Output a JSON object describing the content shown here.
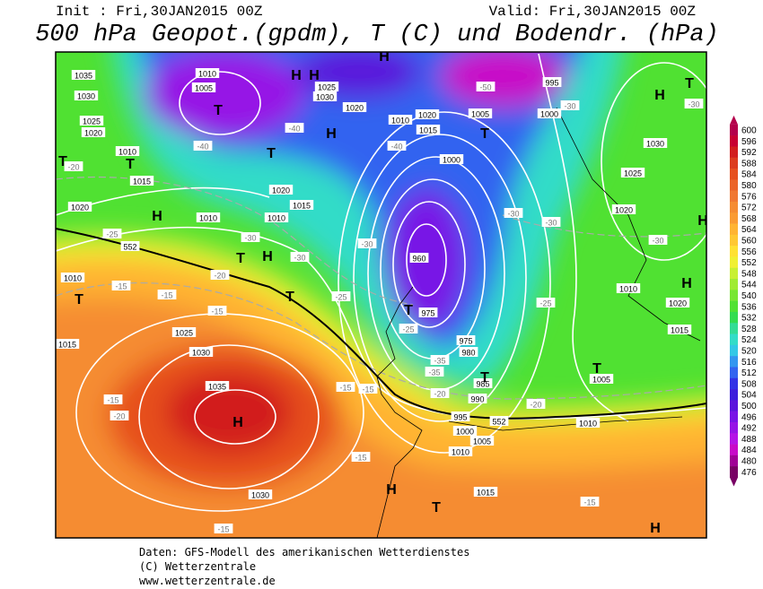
{
  "header": {
    "init": "Init : Fri,30JAN2015 00Z",
    "valid": "Valid: Fri,30JAN2015 00Z",
    "title": "500 hPa Geopot.(gpdm), T (C) und Bodendr. (hPa)"
  },
  "colorbar": {
    "levels": [
      600,
      596,
      592,
      588,
      584,
      580,
      576,
      572,
      568,
      564,
      560,
      556,
      552,
      548,
      544,
      540,
      536,
      532,
      528,
      524,
      520,
      516,
      512,
      508,
      504,
      500,
      496,
      492,
      488,
      484,
      480,
      476
    ],
    "colors": [
      "#b4004b",
      "#c80032",
      "#d21e1e",
      "#dc3c1e",
      "#e6501e",
      "#eb6428",
      "#f07832",
      "#f58c32",
      "#fa9b32",
      "#ffb432",
      "#ffc832",
      "#ffe132",
      "#f0f032",
      "#c8f032",
      "#a0eb32",
      "#78e632",
      "#50e132",
      "#32dc50",
      "#32dc96",
      "#32dcc8",
      "#32c8e6",
      "#3296f0",
      "#3264f0",
      "#3232e6",
      "#3c1edc",
      "#5a14dc",
      "#7814e6",
      "#9614e6",
      "#b414e6",
      "#c80ac8",
      "#a00096",
      "#780064"
    ]
  },
  "map": {
    "centers": [
      "T",
      "T",
      "T",
      "T",
      "T",
      "T",
      "T",
      "T",
      "T",
      "T",
      "T",
      "T",
      "T",
      "H",
      "H",
      "H",
      "H",
      "H",
      "H",
      "H",
      "H",
      "H",
      "H",
      "H",
      "H"
    ],
    "pressure_labels": [
      "1035",
      "1030",
      "1025",
      "1020",
      "1010",
      "1015",
      "1020",
      "1010",
      "1015",
      "1025",
      "1030",
      "1035",
      "1030",
      "1010",
      "1010",
      "1015",
      "1020",
      "1010",
      "1005",
      "1025",
      "1030",
      "1020",
      "1010",
      "1020",
      "1015",
      "1005",
      "1000",
      "995",
      "1000",
      "960",
      "975",
      "975",
      "980",
      "985",
      "990",
      "995",
      "1000",
      "1005",
      "1010",
      "1015",
      "1010",
      "1020",
      "1015",
      "1010",
      "1025",
      "1030",
      "1020",
      "1005"
    ],
    "temperature_labels": [
      "-40",
      "-40",
      "-40",
      "-30",
      "-30",
      "-30",
      "-30",
      "-30",
      "-30",
      "-30",
      "-30",
      "-25",
      "-25",
      "-25",
      "-20",
      "-20",
      "-15",
      "-15",
      "-15",
      "-15",
      "-15",
      "-15",
      "-15",
      "-15",
      "-15",
      "-20",
      "-20",
      "-20",
      "-25",
      "-35",
      "-35",
      "-50"
    ],
    "geopotential_labels": [
      "552",
      "552"
    ]
  },
  "footer": {
    "source": "Daten: GFS-Modell des amerikanischen Wetterdienstes",
    "copyright": "(C) Wetterzentrale",
    "url": "www.wetterzentrale.de"
  }
}
